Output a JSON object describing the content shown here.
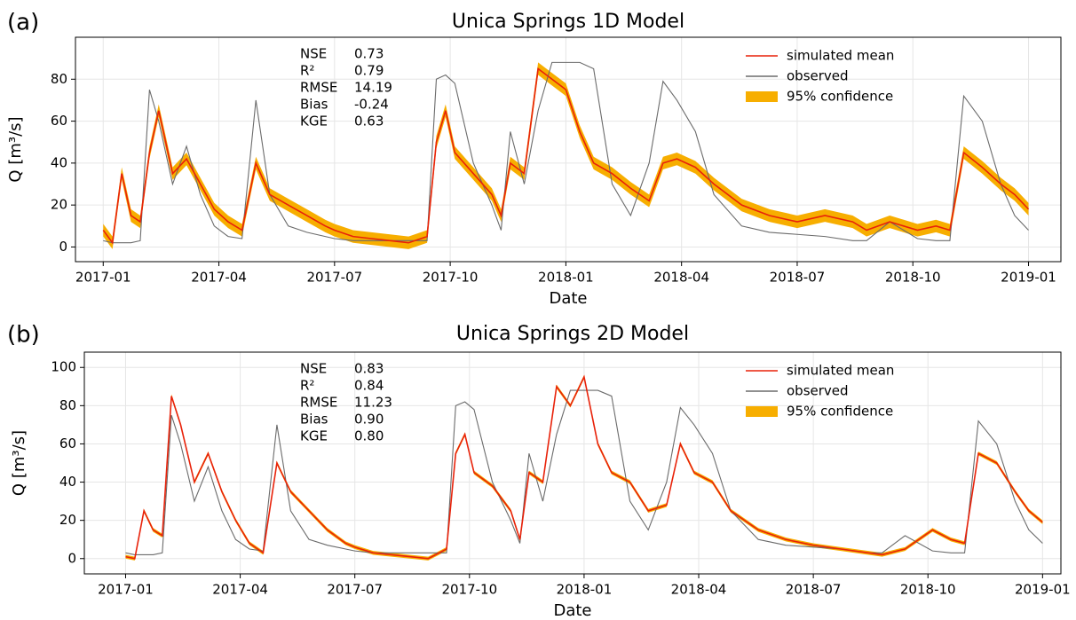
{
  "chart_data": [
    {
      "type": "line",
      "panel_label": "(a)",
      "title": "Unica Springs 1D Model",
      "xlabel": "Date",
      "ylabel": "Q [m³/s]",
      "grid": true,
      "legend": "upper right",
      "stats": [
        [
          "NSE",
          "0.73"
        ],
        [
          "R²",
          "0.79"
        ],
        [
          "RMSE",
          "14.19"
        ],
        [
          "Bias",
          "-0.24"
        ],
        [
          "KGE",
          "0.63"
        ]
      ],
      "xlim": [
        2016.94,
        2019.07
      ],
      "ylim": [
        -7,
        100
      ],
      "xticks": [
        {
          "value": 2017.0,
          "label": "2017-01"
        },
        {
          "value": 2017.25,
          "label": "2017-04"
        },
        {
          "value": 2017.5,
          "label": "2017-07"
        },
        {
          "value": 2017.75,
          "label": "2017-10"
        },
        {
          "value": 2018.0,
          "label": "2018-01"
        },
        {
          "value": 2018.25,
          "label": "2018-04"
        },
        {
          "value": 2018.5,
          "label": "2018-07"
        },
        {
          "value": 2018.75,
          "label": "2018-10"
        },
        {
          "value": 2019.0,
          "label": "2019-01"
        }
      ],
      "yticks": [
        0,
        20,
        40,
        60,
        80
      ],
      "x": [
        2017.0,
        2017.02,
        2017.04,
        2017.06,
        2017.08,
        2017.1,
        2017.12,
        2017.15,
        2017.18,
        2017.21,
        2017.24,
        2017.27,
        2017.3,
        2017.33,
        2017.36,
        2017.4,
        2017.44,
        2017.48,
        2017.5,
        2017.54,
        2017.58,
        2017.62,
        2017.66,
        2017.7,
        2017.72,
        2017.74,
        2017.76,
        2017.8,
        2017.84,
        2017.86,
        2017.88,
        2017.91,
        2017.94,
        2017.97,
        2018.0,
        2018.03,
        2018.06,
        2018.1,
        2018.14,
        2018.18,
        2018.21,
        2018.24,
        2018.28,
        2018.32,
        2018.38,
        2018.44,
        2018.5,
        2018.56,
        2018.62,
        2018.65,
        2018.7,
        2018.76,
        2018.8,
        2018.83,
        2018.86,
        2018.9,
        2018.94,
        2018.97,
        2019.0
      ],
      "series": [
        {
          "name": "simulated mean",
          "color": "#e8220a",
          "values": [
            8,
            2,
            35,
            15,
            12,
            45,
            65,
            35,
            42,
            30,
            18,
            12,
            8,
            40,
            25,
            20,
            15,
            10,
            8,
            5,
            4,
            3,
            2,
            5,
            50,
            65,
            45,
            35,
            25,
            15,
            40,
            35,
            85,
            80,
            75,
            55,
            40,
            35,
            28,
            22,
            40,
            42,
            38,
            30,
            20,
            15,
            12,
            15,
            12,
            8,
            12,
            8,
            10,
            8,
            45,
            38,
            30,
            25,
            18
          ]
        },
        {
          "name": "observed",
          "color": "#6b6b6b",
          "values": [
            3,
            2,
            2,
            2,
            3,
            75,
            60,
            30,
            48,
            25,
            10,
            5,
            4,
            70,
            25,
            10,
            7,
            5,
            4,
            3,
            3,
            3,
            3,
            3,
            80,
            82,
            78,
            40,
            20,
            8,
            55,
            30,
            65,
            88,
            88,
            88,
            85,
            30,
            15,
            40,
            79,
            70,
            55,
            25,
            10,
            7,
            6,
            5,
            3,
            3,
            12,
            4,
            3,
            3,
            72,
            60,
            30,
            15,
            8
          ]
        },
        {
          "name": "95% confidence",
          "color": "#f7ae00",
          "lower": [
            5,
            -1,
            32,
            12,
            9,
            42,
            62,
            32,
            39,
            27,
            15,
            9,
            5,
            37,
            22,
            17,
            12,
            7,
            5,
            2,
            1,
            0,
            -1,
            2,
            47,
            62,
            42,
            32,
            22,
            12,
            37,
            32,
            82,
            77,
            72,
            52,
            37,
            32,
            25,
            19,
            37,
            39,
            35,
            27,
            17,
            12,
            9,
            12,
            9,
            5,
            9,
            5,
            7,
            5,
            42,
            35,
            27,
            22,
            15
          ],
          "upper": [
            11,
            5,
            38,
            18,
            15,
            48,
            68,
            38,
            45,
            33,
            21,
            15,
            11,
            43,
            28,
            23,
            18,
            13,
            11,
            8,
            7,
            6,
            5,
            8,
            53,
            68,
            48,
            38,
            28,
            18,
            43,
            38,
            88,
            83,
            78,
            58,
            43,
            38,
            31,
            25,
            43,
            45,
            41,
            33,
            23,
            18,
            15,
            18,
            15,
            11,
            15,
            11,
            13,
            11,
            48,
            41,
            33,
            28,
            21
          ]
        }
      ]
    },
    {
      "type": "line",
      "panel_label": "(b)",
      "title": "Unica Springs 2D Model",
      "xlabel": "Date",
      "ylabel": "Q [m³/s]",
      "grid": true,
      "legend": "upper right",
      "stats": [
        [
          "NSE",
          "0.83"
        ],
        [
          "R²",
          "0.84"
        ],
        [
          "RMSE",
          "11.23"
        ],
        [
          "Bias",
          "0.90"
        ],
        [
          "KGE",
          "0.80"
        ]
      ],
      "xlim": [
        2016.91,
        2019.04
      ],
      "ylim": [
        -8,
        108
      ],
      "xticks": [
        {
          "value": 2017.0,
          "label": "2017-01"
        },
        {
          "value": 2017.25,
          "label": "2017-04"
        },
        {
          "value": 2017.5,
          "label": "2017-07"
        },
        {
          "value": 2017.75,
          "label": "2017-10"
        },
        {
          "value": 2018.0,
          "label": "2018-01"
        },
        {
          "value": 2018.25,
          "label": "2018-04"
        },
        {
          "value": 2018.5,
          "label": "2018-07"
        },
        {
          "value": 2018.75,
          "label": "2018-10"
        },
        {
          "value": 2019.0,
          "label": "2019-01"
        }
      ],
      "yticks": [
        0,
        20,
        40,
        60,
        80,
        100
      ],
      "x": [
        2017.0,
        2017.02,
        2017.04,
        2017.06,
        2017.08,
        2017.1,
        2017.12,
        2017.15,
        2017.18,
        2017.21,
        2017.24,
        2017.27,
        2017.3,
        2017.33,
        2017.36,
        2017.4,
        2017.44,
        2017.48,
        2017.5,
        2017.54,
        2017.58,
        2017.62,
        2017.66,
        2017.7,
        2017.72,
        2017.74,
        2017.76,
        2017.8,
        2017.84,
        2017.86,
        2017.88,
        2017.91,
        2017.94,
        2017.97,
        2018.0,
        2018.03,
        2018.06,
        2018.1,
        2018.14,
        2018.18,
        2018.21,
        2018.24,
        2018.28,
        2018.32,
        2018.38,
        2018.44,
        2018.5,
        2018.56,
        2018.62,
        2018.65,
        2018.7,
        2018.76,
        2018.8,
        2018.83,
        2018.86,
        2018.9,
        2018.94,
        2018.97,
        2019.0
      ],
      "series": [
        {
          "name": "simulated mean",
          "color": "#e8220a",
          "values": [
            1,
            0,
            25,
            15,
            12,
            85,
            70,
            40,
            55,
            35,
            20,
            8,
            3,
            50,
            35,
            25,
            15,
            8,
            6,
            3,
            2,
            1,
            0,
            5,
            55,
            65,
            45,
            38,
            25,
            10,
            45,
            40,
            90,
            80,
            95,
            60,
            45,
            40,
            25,
            28,
            60,
            45,
            40,
            25,
            15,
            10,
            7,
            5,
            3,
            2,
            5,
            15,
            10,
            8,
            55,
            50,
            35,
            25,
            19
          ]
        },
        {
          "name": "observed",
          "color": "#6b6b6b",
          "values": [
            3,
            2,
            2,
            2,
            3,
            75,
            60,
            30,
            48,
            25,
            10,
            5,
            4,
            70,
            25,
            10,
            7,
            5,
            4,
            3,
            3,
            3,
            3,
            3,
            80,
            82,
            78,
            40,
            20,
            8,
            55,
            30,
            65,
            88,
            88,
            88,
            85,
            30,
            15,
            40,
            79,
            70,
            55,
            25,
            10,
            7,
            6,
            5,
            3,
            3,
            12,
            4,
            3,
            3,
            72,
            60,
            30,
            15,
            8
          ]
        },
        {
          "name": "95% confidence",
          "color": "#f7ae00",
          "lower": [
            0,
            -1,
            24,
            14,
            11,
            84,
            69,
            39,
            54,
            34,
            19,
            7,
            2,
            49,
            34,
            24,
            14,
            7,
            5,
            2,
            1,
            0,
            -1,
            4,
            54,
            64,
            44,
            37,
            24,
            9,
            44,
            39,
            89,
            79,
            94,
            59,
            44,
            39,
            24,
            27,
            59,
            44,
            39,
            24,
            14,
            9,
            6,
            4,
            2,
            1,
            4,
            14,
            9,
            7,
            54,
            49,
            34,
            24,
            18
          ],
          "upper": [
            2,
            1,
            26,
            16,
            13,
            86,
            71,
            41,
            56,
            36,
            21,
            9,
            4,
            51,
            36,
            26,
            16,
            9,
            7,
            4,
            3,
            2,
            1,
            6,
            56,
            66,
            46,
            39,
            26,
            11,
            46,
            41,
            91,
            81,
            96,
            61,
            46,
            41,
            26,
            29,
            61,
            46,
            41,
            26,
            16,
            11,
            8,
            6,
            4,
            3,
            6,
            16,
            11,
            9,
            56,
            51,
            36,
            26,
            20
          ]
        }
      ]
    }
  ]
}
